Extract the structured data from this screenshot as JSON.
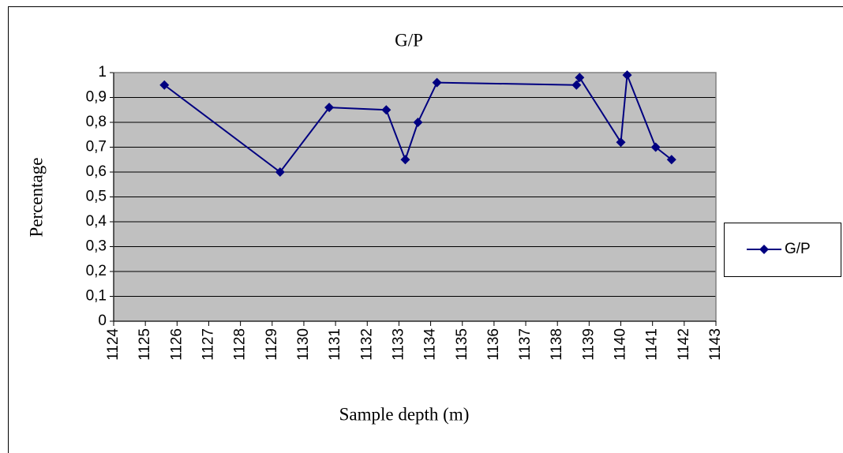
{
  "chart_data": {
    "type": "line",
    "title": "G/P",
    "x_label": "Sample depth (m)",
    "y_label": "Percentage",
    "x": [
      1125.6,
      1129.25,
      1130.8,
      1132.6,
      1133.2,
      1133.6,
      1134.2,
      1138.6,
      1138.7,
      1140.0,
      1140.2,
      1141.1,
      1141.6
    ],
    "series": [
      {
        "name": "G/P",
        "color": "#000080",
        "values": [
          0.95,
          0.6,
          0.86,
          0.85,
          0.65,
          0.8,
          0.96,
          0.95,
          0.98,
          0.72,
          0.99,
          0.7,
          0.65
        ]
      }
    ],
    "xlim": [
      1124,
      1143
    ],
    "xticks": [
      1124,
      1125,
      1126,
      1127,
      1128,
      1129,
      1130,
      1131,
      1132,
      1133,
      1134,
      1135,
      1136,
      1137,
      1138,
      1139,
      1140,
      1141,
      1142,
      1143
    ],
    "ylim": [
      0,
      1
    ],
    "yticks": [
      0,
      {
        "value": 0.1,
        "label": "0,1"
      },
      {
        "value": 0.2,
        "label": "0,2"
      },
      {
        "value": 0.3,
        "label": "0,3"
      },
      {
        "value": 0.4,
        "label": "0,4"
      },
      {
        "value": 0.5,
        "label": "0,5"
      },
      {
        "value": 0.6,
        "label": "0,6"
      },
      {
        "value": 0.7,
        "label": "0,7"
      },
      {
        "value": 0.8,
        "label": "0,8"
      },
      {
        "value": 0.9,
        "label": "0,9"
      },
      1
    ],
    "grid": true,
    "plot_background": "#c0c0c0",
    "legend": "right"
  }
}
